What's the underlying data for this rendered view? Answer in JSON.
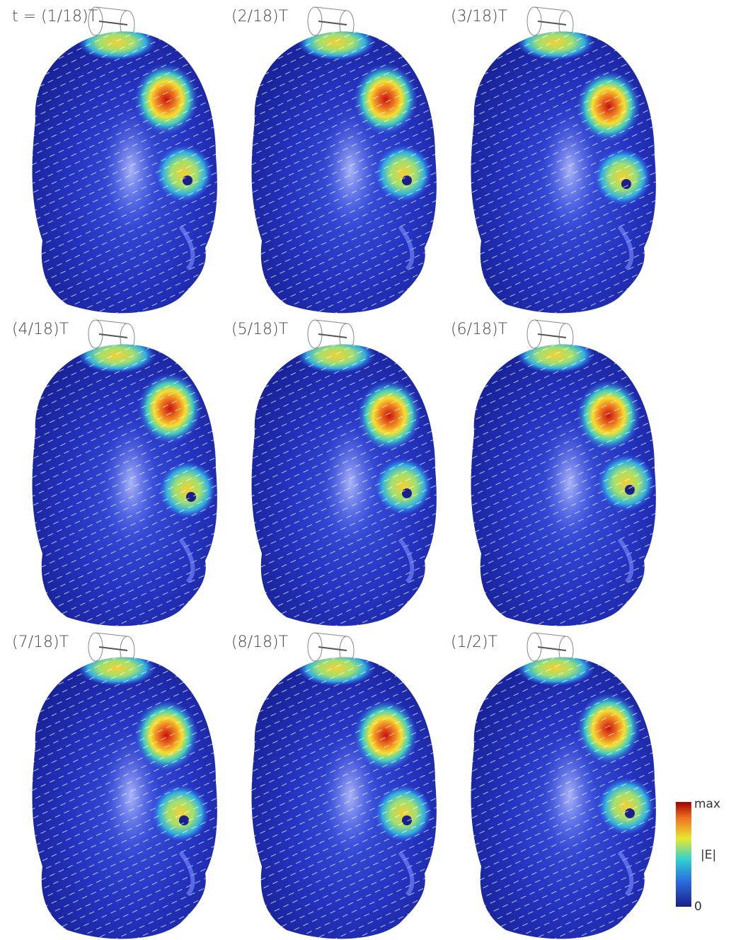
{
  "panels": [
    {
      "label": "t = (1/18)T"
    },
    {
      "label": "(2/18)T"
    },
    {
      "label": "(3/18)T"
    },
    {
      "label": "(4/18)T"
    },
    {
      "label": "(5/18)T"
    },
    {
      "label": "(6/18)T"
    },
    {
      "label": "(7/18)T"
    },
    {
      "label": "(8/18)T"
    },
    {
      "label": "(1/2)T"
    }
  ],
  "colorbar": {
    "top_label": "max",
    "middle_label": "|E|",
    "bottom_label": "0"
  }
}
